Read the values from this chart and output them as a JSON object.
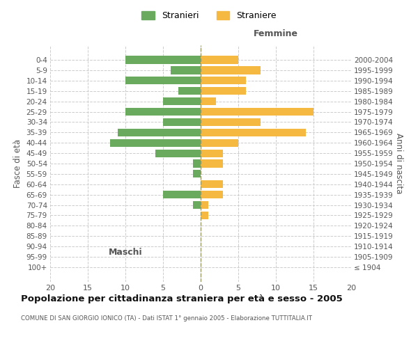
{
  "age_groups": [
    "100+",
    "95-99",
    "90-94",
    "85-89",
    "80-84",
    "75-79",
    "70-74",
    "65-69",
    "60-64",
    "55-59",
    "50-54",
    "45-49",
    "40-44",
    "35-39",
    "30-34",
    "25-29",
    "20-24",
    "15-19",
    "10-14",
    "5-9",
    "0-4"
  ],
  "birth_years": [
    "≤ 1904",
    "1905-1909",
    "1910-1914",
    "1915-1919",
    "1920-1924",
    "1925-1929",
    "1930-1934",
    "1935-1939",
    "1940-1944",
    "1945-1949",
    "1950-1954",
    "1955-1959",
    "1960-1964",
    "1965-1969",
    "1970-1974",
    "1975-1979",
    "1980-1984",
    "1985-1989",
    "1990-1994",
    "1995-1999",
    "2000-2004"
  ],
  "maschi": [
    0,
    0,
    0,
    0,
    0,
    0,
    1,
    5,
    0,
    1,
    1,
    6,
    12,
    11,
    5,
    10,
    5,
    3,
    10,
    4,
    10
  ],
  "femmine": [
    0,
    0,
    0,
    0,
    0,
    1,
    1,
    3,
    3,
    0,
    3,
    3,
    5,
    14,
    8,
    15,
    2,
    6,
    6,
    8,
    5
  ],
  "color_maschi": "#6aaa5e",
  "color_femmine": "#f5b942",
  "title": "Popolazione per cittadinanza straniera per età e sesso - 2005",
  "subtitle": "COMUNE DI SAN GIORGIO IONICO (TA) - Dati ISTAT 1° gennaio 2005 - Elaborazione TUTTITALIA.IT",
  "ylabel_left": "Fasce di età",
  "ylabel_right": "Anni di nascita",
  "xlabel_left": "Maschi",
  "xlabel_right": "Femmine",
  "legend_maschi": "Stranieri",
  "legend_femmine": "Straniere",
  "xlim": 20,
  "background_color": "#ffffff",
  "grid_color": "#cccccc"
}
